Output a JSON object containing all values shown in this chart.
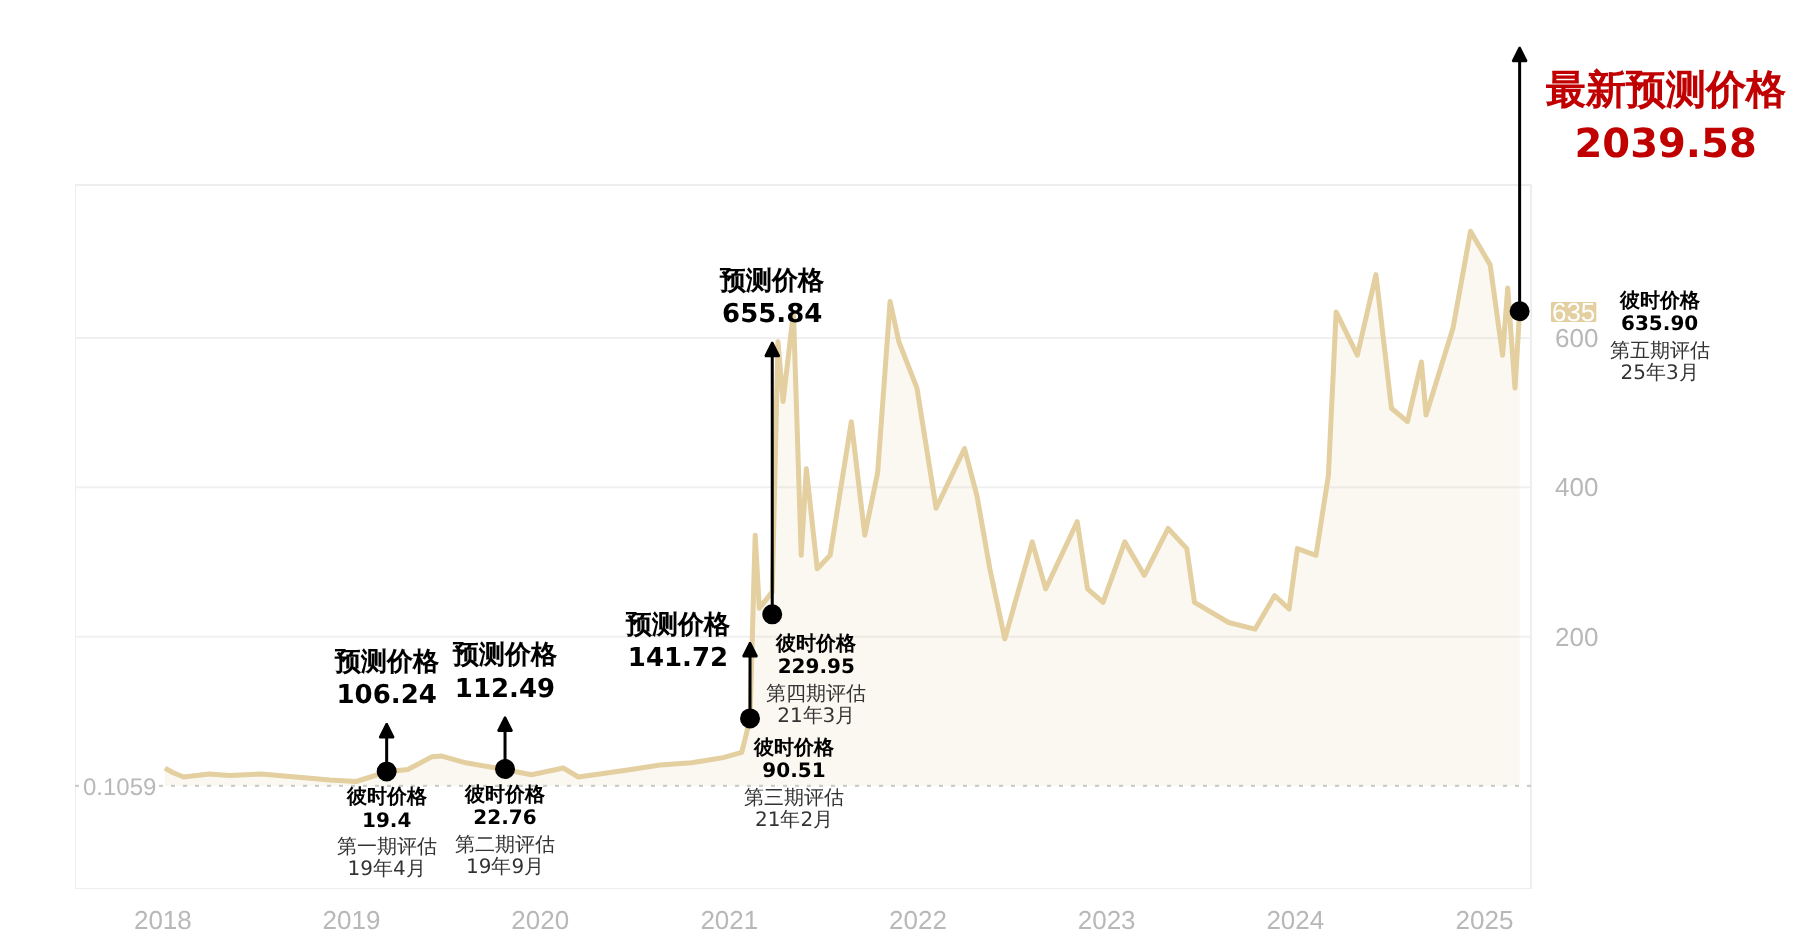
{
  "chart_data": {
    "type": "area",
    "series": [
      {
        "color": "#e3cf9f",
        "x": [
          "2018-01-05",
          "2018-01-20",
          "2018-02-10",
          "2018-04-01",
          "2018-05-10",
          "2018-07-10",
          "2018-09-15",
          "2018-11-20",
          "2019-01-10",
          "2019-03-10",
          "2019-04-20",
          "2019-06-05",
          "2019-06-25",
          "2019-08-10",
          "2019-10-25",
          "2019-12-15",
          "2020-02-15",
          "2020-03-15",
          "2020-06-15",
          "2020-08-20",
          "2020-10-20",
          "2020-12-20",
          "2021-01-25",
          "2021-02-10",
          "2021-02-20",
          "2021-02-28",
          "2021-03-25",
          "2021-04-05",
          "2021-04-15",
          "2021-05-05",
          "2021-05-20",
          "2021-05-30",
          "2021-06-20",
          "2021-07-15",
          "2021-08-25",
          "2021-09-20",
          "2021-10-15",
          "2021-11-08",
          "2021-11-25",
          "2021-12-30",
          "2022-02-05",
          "2022-04-01",
          "2022-04-25",
          "2022-05-20",
          "2022-06-18",
          "2022-08-10",
          "2022-09-05",
          "2022-11-05",
          "2022-11-25",
          "2022-12-25",
          "2023-02-05",
          "2023-03-15",
          "2023-04-30",
          "2023-06-05",
          "2023-06-20",
          "2023-08-25",
          "2023-10-15",
          "2023-11-22",
          "2023-12-20",
          "2024-01-05",
          "2024-02-10",
          "2024-03-05",
          "2024-03-20",
          "2024-04-30",
          "2024-06-05",
          "2024-07-05",
          "2024-08-05",
          "2024-09-01",
          "2024-09-10",
          "2024-11-01",
          "2024-12-05",
          "2025-01-12",
          "2025-02-05",
          "2025-02-15",
          "2025-03-01",
          "2025-03-10"
        ],
        "values": [
          24,
          18,
          12,
          16,
          14,
          16,
          12,
          8,
          6,
          19,
          22,
          39,
          40,
          31,
          22,
          15,
          24,
          12,
          21,
          28,
          31,
          38,
          45,
          90,
          336,
          238,
          260,
          595,
          515,
          635,
          309,
          425,
          291,
          309,
          488,
          336,
          420,
          649,
          595,
          533,
          372,
          452,
          389,
          291,
          197,
          327,
          264,
          354,
          264,
          246,
          327,
          282,
          345,
          318,
          246,
          219,
          210,
          255,
          237,
          318,
          309,
          416,
          635,
          577,
          685,
          506,
          488,
          568,
          497,
          613,
          743,
          698,
          577,
          667,
          533,
          636
        ]
      },
      {
        "type": "scatter",
        "marker": "circle",
        "color": "#000000",
        "x": [
          "2019-03-10",
          "2019-10-25",
          "2021-02-10",
          "2021-03-25",
          "2025-03-10"
        ],
        "values": [
          19.4,
          22.76,
          90.51,
          229.95,
          635.9
        ]
      }
    ],
    "xlim": [
      "2017-07-15",
      "2025-04-01"
    ],
    "xticks": [
      "2018",
      "2019",
      "2020",
      "2021",
      "2022",
      "2023",
      "2024",
      "2025"
    ],
    "ylim": [
      -138,
      805
    ],
    "yticks": [
      200,
      400,
      600
    ],
    "grid": "y",
    "ref_lines": [
      {
        "axis": "y",
        "value": 0.1059,
        "label": "0.1059",
        "line_style": "dotted",
        "color": "#cccccc"
      }
    ],
    "annotations": [
      {
        "text": "预测价格\n106.24",
        "x": "2019-03-10",
        "y": 19.4
      },
      {
        "text": "彼时价格\n19.4\n第一期评估\n19年4月",
        "x": "2019-03-10",
        "y": 19.4
      },
      {
        "text": "预测价格\n112.49",
        "x": "2019-10-25",
        "y": 22.76
      },
      {
        "text": "彼时价格\n22.76\n第二期评估\n19年9月",
        "x": "2019-10-25",
        "y": 22.76
      },
      {
        "text": "预测价格\n141.72",
        "x": "2021-02-10",
        "y": 90.51
      },
      {
        "text": "彼时价格\n90.51\n第三期评估\n21年2月",
        "x": "2021-02-10",
        "y": 90.51
      },
      {
        "text": "预测价格\n655.84",
        "x": "2021-03-25",
        "y": 229.95
      },
      {
        "text": "彼时价格\n229.95\n第四期评估\n21年3月",
        "x": "2021-03-25",
        "y": 229.95
      },
      {
        "text": "最新预测价格\n2039.58",
        "x": "2025-03-10",
        "y": 635.9
      },
      "彼时价格\n635.90\n第五期评估\n25年3月",
      {
        "text": "635",
        "x": "2025-03-10",
        "y": 635
      }
    ]
  }
}
